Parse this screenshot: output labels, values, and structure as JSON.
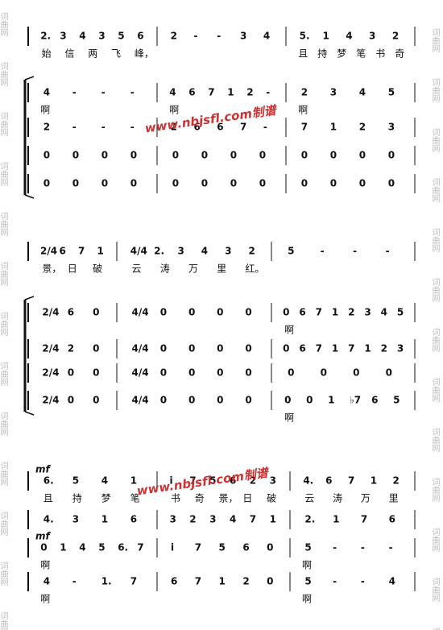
{
  "watermark_side": "词曲网",
  "watermark_center": "www.nbjsfl.com制谱",
  "systems": [
    {
      "parts": [
        {
          "notes": [
            [
              "2.",
              "3",
              "4",
              "3",
              "5",
              "6"
            ],
            [
              "2",
              "-",
              "-",
              "3",
              "4"
            ],
            [
              "5.",
              "1",
              "4",
              "3",
              "2"
            ]
          ],
          "lyrics": [
            [
              "始",
              "信",
              "两",
              "飞",
              "峰，"
            ],
            [],
            [
              "且",
              "持",
              "梦",
              "笔",
              "书",
              "奇"
            ]
          ]
        },
        {
          "notes": [
            [
              "4",
              "-",
              "-",
              "-"
            ],
            [
              "4",
              "6",
              "7",
              "1",
              "2",
              "-"
            ],
            [
              "2",
              "3",
              "4",
              "5"
            ]
          ],
          "lyrics": [
            [
              "啊"
            ],
            [
              "啊"
            ],
            [
              "啊"
            ]
          ]
        },
        {
          "notes": [
            [
              "2",
              "-",
              "-",
              "-"
            ],
            [
              "2",
              "6",
              "6",
              "7",
              "-"
            ],
            [
              "7",
              "1",
              "2",
              "3"
            ]
          ]
        },
        {
          "notes": [
            [
              "0",
              "0",
              "0",
              "0"
            ],
            [
              "0",
              "0",
              "0",
              "0"
            ],
            [
              "0",
              "0",
              "0",
              "0"
            ]
          ]
        },
        {
          "notes": [
            [
              "0",
              "0",
              "0",
              "0"
            ],
            [
              "0",
              "0",
              "0",
              "0"
            ],
            [
              "0",
              "0",
              "0",
              "0"
            ]
          ]
        }
      ]
    },
    {
      "parts": [
        {
          "notes": [
            [
              "2/4",
              "6",
              "7",
              "1"
            ],
            [
              "4/4",
              "2.",
              "3",
              "4",
              "3",
              "2"
            ],
            [
              "5",
              "-",
              "-",
              "-"
            ]
          ],
          "lyrics": [
            [
              "景，",
              "日",
              "破"
            ],
            [
              "云",
              "涛",
              "万",
              "里",
              "红。"
            ],
            []
          ]
        },
        {
          "notes": [
            [
              "2/4",
              "6",
              "0"
            ],
            [
              "4/4",
              "0",
              "0",
              "0",
              "0"
            ],
            [
              "0",
              "6",
              "7",
              "1",
              "2",
              "3",
              "4",
              "5"
            ]
          ],
          "lyrics": [
            [],
            [],
            [
              "啊"
            ]
          ]
        },
        {
          "notes": [
            [
              "2/4",
              "2",
              "0"
            ],
            [
              "4/4",
              "0",
              "0",
              "0",
              "0"
            ],
            [
              "0",
              "6",
              "7",
              "1",
              "7",
              "1",
              "2",
              "3"
            ]
          ]
        },
        {
          "notes": [
            [
              "2/4",
              "0",
              "0"
            ],
            [
              "4/4",
              "0",
              "0",
              "0",
              "0"
            ],
            [
              "0",
              "0",
              "0",
              "0"
            ]
          ]
        },
        {
          "notes": [
            [
              "2/4",
              "0",
              "0"
            ],
            [
              "4/4",
              "0",
              "0",
              "0",
              "0"
            ],
            [
              "0",
              "0",
              "1",
              "♭7",
              "6",
              "5"
            ]
          ],
          "lyrics": [
            [],
            [],
            [
              "啊"
            ]
          ]
        }
      ]
    },
    {
      "parts": [
        {
          "dynamic": "mf",
          "notes": [
            [
              "6.",
              "5",
              "4",
              "1"
            ],
            [
              "i",
              "7",
              "5",
              "6",
              "2",
              "3"
            ],
            [
              "4.",
              "6",
              "7",
              "1",
              "2"
            ]
          ],
          "lyrics": [
            [
              "且",
              "持",
              "梦",
              "笔"
            ],
            [
              "书",
              "奇",
              "景，",
              "日",
              "破"
            ],
            [
              "云",
              "涛",
              "万",
              "里"
            ]
          ]
        },
        {
          "notes": [
            [
              "4.",
              "3",
              "1",
              "6"
            ],
            [
              "3",
              "2",
              "3",
              "4",
              "7",
              "1"
            ],
            [
              "2.",
              "1",
              "7",
              "6"
            ]
          ]
        },
        {
          "dynamic": "mf",
          "notes": [
            [
              "0",
              "1",
              "4",
              "5",
              "6.",
              "7"
            ],
            [
              "i",
              "7",
              "5",
              "6",
              "0"
            ],
            [
              "5",
              "-",
              "-",
              "-"
            ]
          ],
          "lyrics": [
            [
              "啊"
            ],
            [],
            [
              "啊"
            ]
          ]
        },
        {
          "notes": [
            [
              "4",
              "-",
              "1.",
              "7"
            ],
            [
              "6",
              "7",
              "1",
              "2",
              "0"
            ],
            [
              "5",
              "-",
              "-",
              "4"
            ]
          ],
          "lyrics": [
            [
              "啊"
            ],
            [],
            [
              "啊"
            ]
          ]
        }
      ]
    }
  ]
}
